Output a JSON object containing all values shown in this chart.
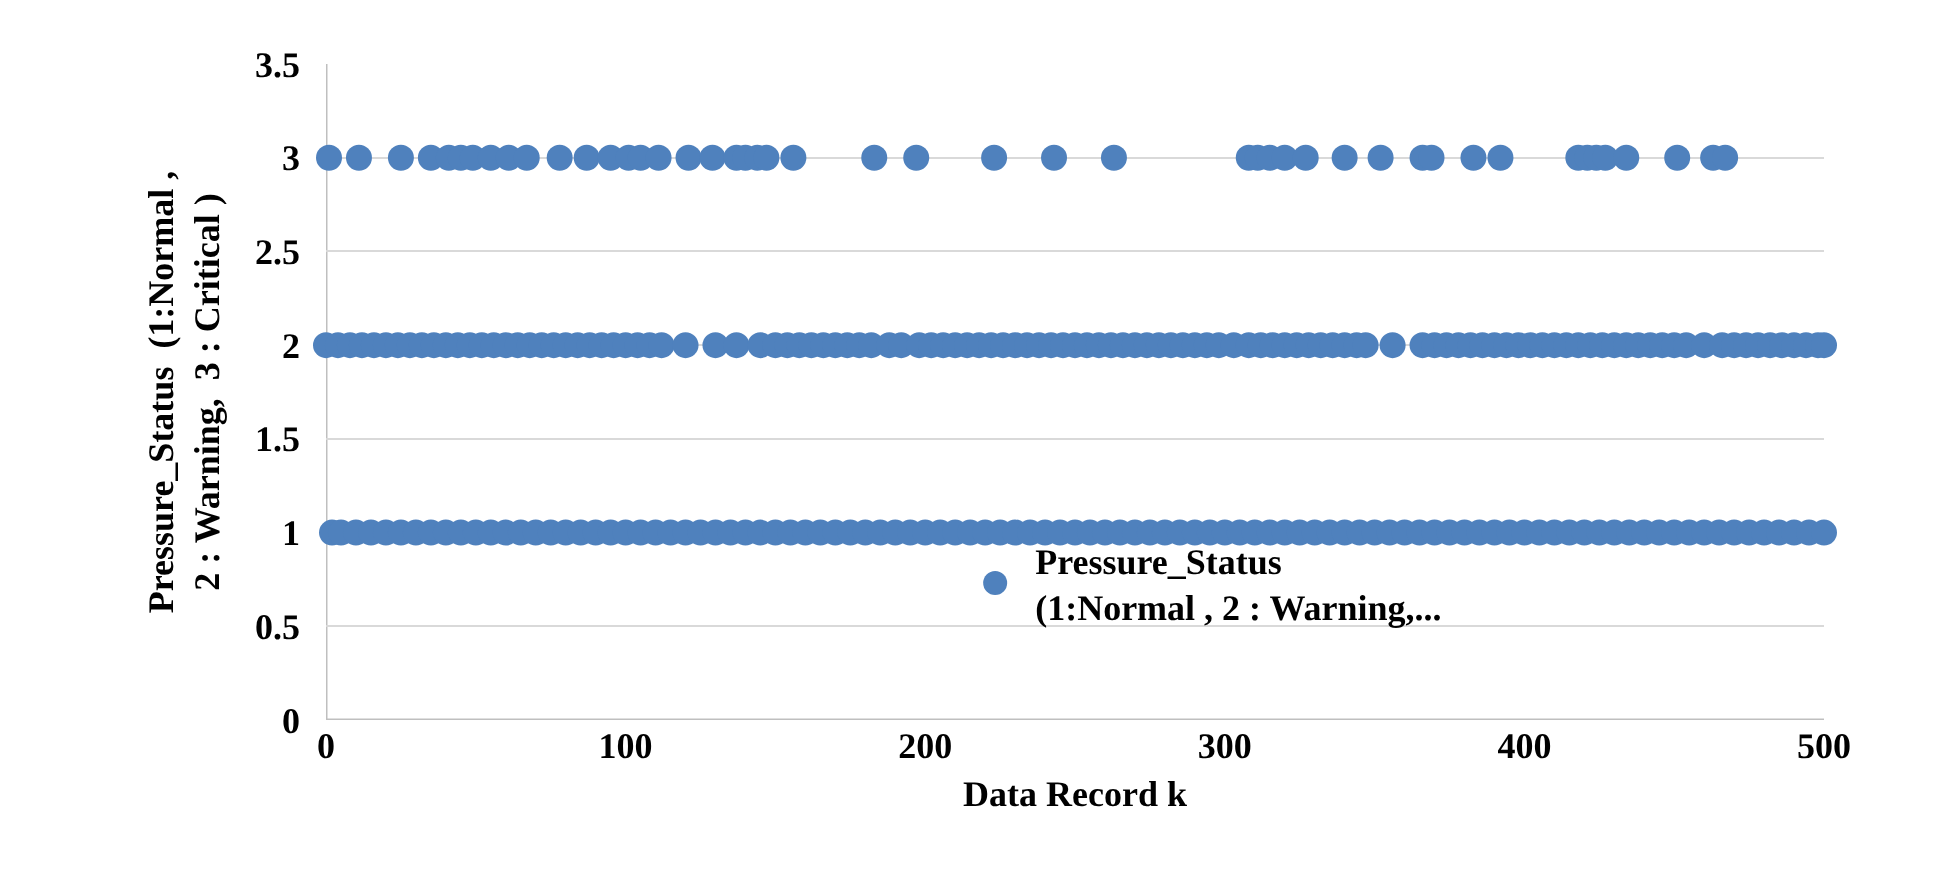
{
  "chart_data": {
    "type": "scatter",
    "xlabel": "Data Record k",
    "ylabel": "Pressure_Status  (1:Normal , 2 : Warning,  3 : Critical )",
    "xlim": [
      0,
      500
    ],
    "ylim": [
      0,
      3.5
    ],
    "xticks": [
      0,
      100,
      200,
      300,
      400,
      500
    ],
    "yticks": [
      0,
      0.5,
      1,
      1.5,
      2,
      2.5,
      3,
      3.5
    ],
    "grid": "y",
    "legend": "bottom",
    "marker": "circle",
    "series": [
      {
        "name": "Pressure_Status  (1:Normal , 2 : Warning,...",
        "color": "#4f81bd",
        "x": [
          1,
          11,
          25,
          35,
          41,
          45,
          49,
          55,
          61,
          67,
          78,
          87,
          95,
          101,
          105,
          111,
          121,
          129,
          137,
          140,
          144,
          147,
          156,
          183,
          197,
          223,
          243,
          263,
          308,
          311,
          315,
          320,
          327,
          340,
          352,
          366,
          369,
          383,
          392,
          418,
          421,
          424,
          427,
          434,
          451,
          463,
          467,
          0,
          4,
          8,
          12,
          16,
          20,
          24,
          28,
          32,
          36,
          40,
          44,
          48,
          52,
          56,
          60,
          64,
          68,
          72,
          76,
          80,
          84,
          88,
          92,
          96,
          100,
          104,
          108,
          112,
          120,
          130,
          137,
          145,
          150,
          154,
          158,
          162,
          166,
          170,
          174,
          178,
          182,
          188,
          192,
          198,
          202,
          206,
          210,
          214,
          218,
          222,
          226,
          230,
          234,
          238,
          242,
          246,
          250,
          254,
          258,
          262,
          266,
          270,
          274,
          278,
          282,
          286,
          290,
          294,
          298,
          303,
          308,
          312,
          316,
          320,
          324,
          328,
          332,
          336,
          340,
          344,
          347,
          356,
          366,
          370,
          374,
          378,
          382,
          386,
          390,
          394,
          398,
          402,
          406,
          410,
          414,
          418,
          422,
          426,
          430,
          434,
          438,
          442,
          446,
          450,
          454,
          460,
          466,
          470,
          474,
          478,
          482,
          486,
          490,
          494,
          498,
          500,
          2,
          5,
          10,
          15,
          20,
          25,
          30,
          35,
          40,
          45,
          50,
          55,
          60,
          65,
          70,
          75,
          80,
          85,
          90,
          95,
          100,
          105,
          110,
          115,
          120,
          125,
          130,
          135,
          140,
          145,
          150,
          155,
          160,
          165,
          170,
          175,
          180,
          185,
          190,
          195,
          200,
          205,
          210,
          215,
          220,
          225,
          230,
          235,
          240,
          245,
          250,
          255,
          260,
          265,
          270,
          275,
          280,
          285,
          290,
          295,
          300,
          305,
          310,
          315,
          320,
          325,
          330,
          335,
          340,
          345,
          350,
          355,
          360,
          365,
          370,
          375,
          380,
          385,
          390,
          395,
          400,
          405,
          410,
          415,
          420,
          425,
          430,
          435,
          440,
          445,
          450,
          455,
          460,
          465,
          470,
          475,
          480,
          485,
          490,
          495,
          500
        ],
        "values": [
          3,
          3,
          3,
          3,
          3,
          3,
          3,
          3,
          3,
          3,
          3,
          3,
          3,
          3,
          3,
          3,
          3,
          3,
          3,
          3,
          3,
          3,
          3,
          3,
          3,
          3,
          3,
          3,
          3,
          3,
          3,
          3,
          3,
          3,
          3,
          3,
          3,
          3,
          3,
          3,
          3,
          3,
          3,
          3,
          3,
          3,
          3,
          2,
          2,
          2,
          2,
          2,
          2,
          2,
          2,
          2,
          2,
          2,
          2,
          2,
          2,
          2,
          2,
          2,
          2,
          2,
          2,
          2,
          2,
          2,
          2,
          2,
          2,
          2,
          2,
          2,
          2,
          2,
          2,
          2,
          2,
          2,
          2,
          2,
          2,
          2,
          2,
          2,
          2,
          2,
          2,
          2,
          2,
          2,
          2,
          2,
          2,
          2,
          2,
          2,
          2,
          2,
          2,
          2,
          2,
          2,
          2,
          2,
          2,
          2,
          2,
          2,
          2,
          2,
          2,
          2,
          2,
          2,
          2,
          2,
          2,
          2,
          2,
          2,
          2,
          2,
          2,
          2,
          2,
          2,
          2,
          2,
          2,
          2,
          2,
          2,
          2,
          2,
          2,
          2,
          2,
          2,
          2,
          2,
          2,
          2,
          2,
          2,
          2,
          2,
          2,
          2,
          2,
          2,
          2,
          2,
          2,
          2,
          2,
          2,
          2,
          2,
          2,
          2,
          1,
          1,
          1,
          1,
          1,
          1,
          1,
          1,
          1,
          1,
          1,
          1,
          1,
          1,
          1,
          1,
          1,
          1,
          1,
          1,
          1,
          1,
          1,
          1,
          1,
          1,
          1,
          1,
          1,
          1,
          1,
          1,
          1,
          1,
          1,
          1,
          1,
          1,
          1,
          1,
          1,
          1,
          1,
          1,
          1,
          1,
          1,
          1,
          1,
          1,
          1,
          1,
          1,
          1,
          1,
          1,
          1,
          1,
          1,
          1,
          1,
          1,
          1,
          1,
          1,
          1,
          1,
          1,
          1,
          1,
          1,
          1,
          1,
          1,
          1,
          1,
          1,
          1,
          1,
          1,
          1,
          1,
          1,
          1,
          1,
          1,
          1,
          1,
          1,
          1,
          1,
          1,
          1,
          1,
          1,
          1,
          1,
          1,
          1,
          1,
          1
        ]
      }
    ]
  }
}
